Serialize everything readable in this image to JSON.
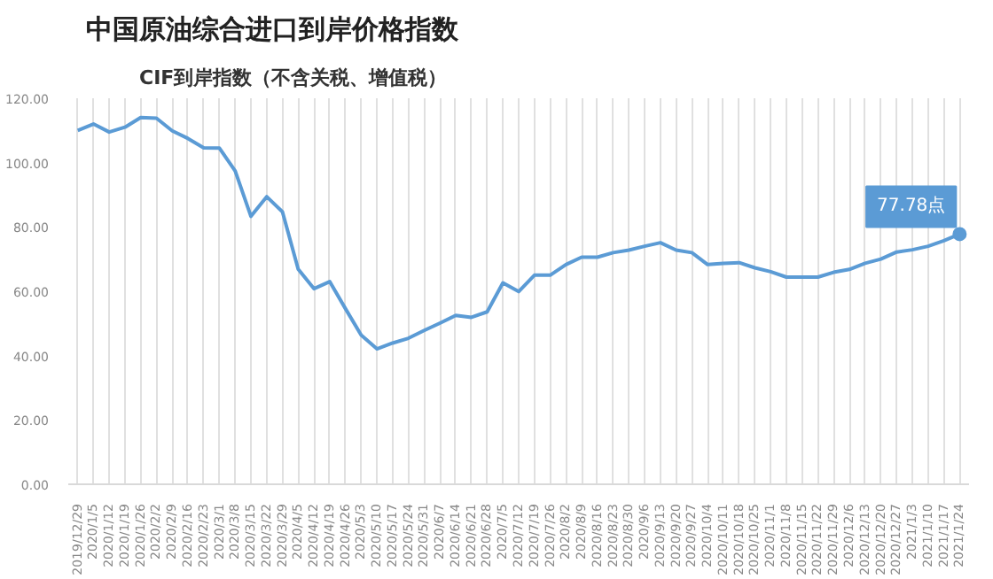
{
  "chart_data": {
    "type": "line",
    "title": "中国原油综合进口到岸价格指数",
    "subtitle": "CIF到岸指数（不含关税、增值税）",
    "categories": [
      "2019/12/29",
      "2020/1/5",
      "2020/1/12",
      "2020/1/19",
      "2020/1/26",
      "2020/2/2",
      "2020/2/9",
      "2020/2/16",
      "2020/2/23",
      "2020/3/1",
      "2020/3/8",
      "2020/3/15",
      "2020/3/22",
      "2020/3/29",
      "2020/4/5",
      "2020/4/12",
      "2020/4/19",
      "2020/4/26",
      "2020/5/3",
      "2020/5/10",
      "2020/5/17",
      "2020/5/24",
      "2020/5/31",
      "2020/6/7",
      "2020/6/14",
      "2020/6/21",
      "2020/6/28",
      "2020/7/5",
      "2020/7/12",
      "2020/7/19",
      "2020/7/26",
      "2020/8/2",
      "2020/8/9",
      "2020/8/16",
      "2020/8/23",
      "2020/8/30",
      "2020/9/6",
      "2020/9/13",
      "2020/9/20",
      "2020/9/27",
      "2020/10/4",
      "2020/10/11",
      "2020/10/18",
      "2020/10/25",
      "2020/11/1",
      "2020/11/8",
      "2020/11/15",
      "2020/11/22",
      "2020/11/29",
      "2020/12/6",
      "2020/12/13",
      "2020/12/20",
      "2020/12/27",
      "2021/1/3",
      "2021/1/10",
      "2021/1/17",
      "2021/1/24"
    ],
    "series": [
      {
        "color": "#5b9bd5",
        "values": [
          110.0,
          112.0,
          109.5,
          111.0,
          114.0,
          113.8,
          109.9,
          107.5,
          104.6,
          104.5,
          97.4,
          83.3,
          89.4,
          84.7,
          66.9,
          60.8,
          63.0,
          54.6,
          46.4,
          42.1,
          43.9,
          45.4,
          47.8,
          50.1,
          52.5,
          51.9,
          53.6,
          62.6,
          59.9,
          65.0,
          65.0,
          68.3,
          70.6,
          70.6,
          72.0,
          72.8,
          74.0,
          75.1,
          72.8,
          72.0,
          68.3,
          68.7,
          68.9,
          67.3,
          66.1,
          64.4,
          64.4,
          64.4,
          65.9,
          66.8,
          68.7,
          70.0,
          72.2,
          72.9,
          74.0,
          75.7,
          77.78
        ]
      }
    ],
    "ylim": [
      0,
      120
    ],
    "yticks": [
      {
        "value": 0,
        "label": "0.00"
      },
      {
        "value": 20,
        "label": "20.00"
      },
      {
        "value": 40,
        "label": "40.00"
      },
      {
        "value": 60,
        "label": "60.00"
      },
      {
        "value": 80,
        "label": "80.00"
      },
      {
        "value": 100,
        "label": "100.00"
      },
      {
        "value": 120,
        "label": "120.00"
      }
    ],
    "grid": "x",
    "marker": "none",
    "line_style": "solid",
    "annotations": [
      {
        "text": "77.78点",
        "x": "2021/1/24",
        "y": 77.78
      }
    ]
  }
}
